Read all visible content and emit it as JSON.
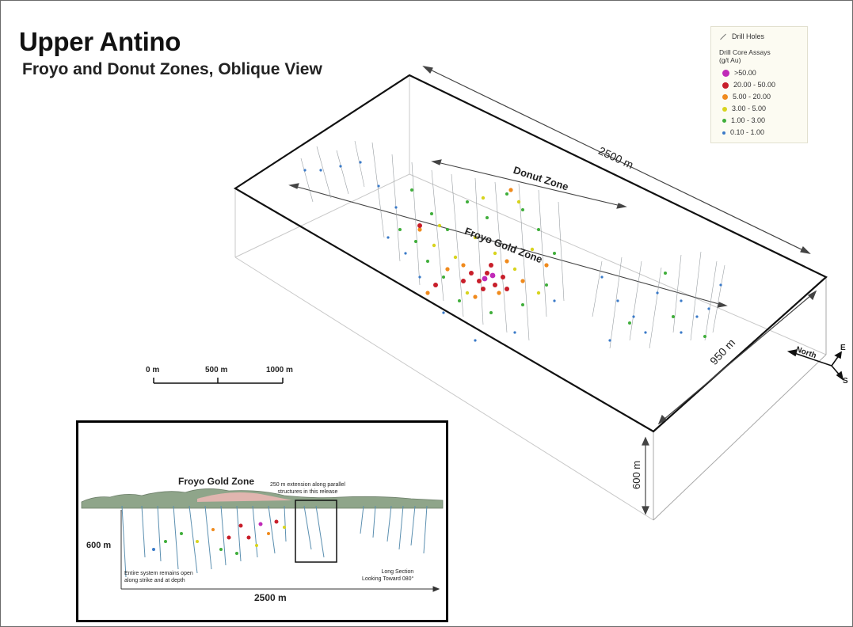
{
  "map": {
    "title": "Upper Antino",
    "subtitle": "Froyo and Donut Zones, Oblique View"
  },
  "legend": {
    "drill_holes": "Drill Holes",
    "assays_header_line1": "Drill Core Assays",
    "assays_header_line2": "(g/t Au)",
    "classes": [
      {
        "label": ">50.00",
        "color": "#c02ab8"
      },
      {
        "label": "20.00 - 50.00",
        "color": "#c81e2a"
      },
      {
        "label": "5.00 - 20.00",
        "color": "#f08a1c"
      },
      {
        "label": "3.00 - 5.00",
        "color": "#d8d41e"
      },
      {
        "label": "1.00 - 3.00",
        "color": "#3fae3a"
      },
      {
        "label": "0.10 - 1.00",
        "color": "#3a7ac8"
      }
    ]
  },
  "block": {
    "length_label": "2500 m",
    "width_label": "950 m",
    "depth_label": "600 m",
    "donut_zone": "Donut Zone",
    "froyo_zone": "Froyo Gold Zone"
  },
  "compass": {
    "north": "North",
    "east": "E",
    "south": "S"
  },
  "scale_bar": {
    "ticks": [
      "0 m",
      "500 m",
      "1000 m"
    ]
  },
  "inset": {
    "zone_label": "Froyo Gold Zone",
    "extension_note_line1": "250 m extension along parallel",
    "extension_note_line2": "structures in this release",
    "depth_label": "600 m",
    "open_note_line1": "Entire system remains open",
    "open_note_line2": "along strike and at depth",
    "length_label": "2500 m",
    "section_line1": "Long Section",
    "section_line2": "Looking Toward 080°"
  }
}
